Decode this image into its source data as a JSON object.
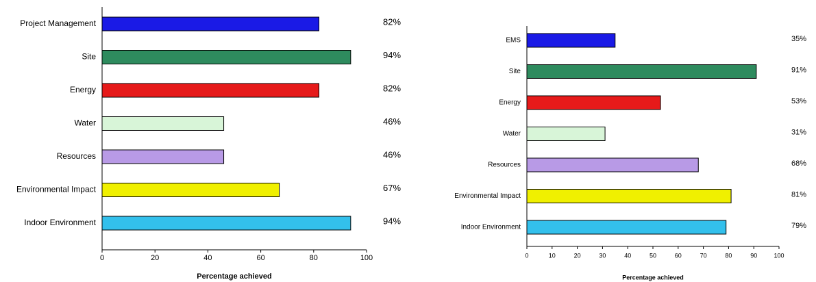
{
  "chart_data": [
    {
      "type": "barh",
      "x_label": "Percentage achieved",
      "categories": [
        "Project Management",
        "Site",
        "Energy",
        "Water",
        "Resources",
        "Environmental Impact",
        "Indoor Environment"
      ],
      "values": [
        82,
        94,
        82,
        46,
        46,
        67,
        94
      ],
      "value_labels": [
        "82%",
        "94%",
        "82%",
        "46%",
        "46%",
        "67%",
        "94%"
      ],
      "colors": [
        "#1a1ae6",
        "#2e8b5e",
        "#e61a1a",
        "#d8f5d8",
        "#b89ae6",
        "#f0f000",
        "#33c0ec"
      ],
      "xlim": [
        0,
        100
      ],
      "xticks": [
        0,
        20,
        40,
        60,
        80,
        100
      ]
    },
    {
      "type": "barh",
      "x_label": "Percentage achieved",
      "categories": [
        "EMS",
        "Site",
        "Energy",
        "Water",
        "Resources",
        "Environmental Impact",
        "Indoor Environment"
      ],
      "values": [
        35,
        91,
        53,
        31,
        68,
        81,
        79
      ],
      "value_labels": [
        "35%",
        "91%",
        "53%",
        "31%",
        "68%",
        "81%",
        "79%"
      ],
      "colors": [
        "#1a1ae6",
        "#2e8b5e",
        "#e61a1a",
        "#d8f5d8",
        "#b89ae6",
        "#f0f000",
        "#33c0ec"
      ],
      "xlim": [
        0,
        100
      ],
      "xticks": [
        0,
        10,
        20,
        30,
        40,
        50,
        60,
        70,
        80,
        90,
        100
      ]
    }
  ]
}
